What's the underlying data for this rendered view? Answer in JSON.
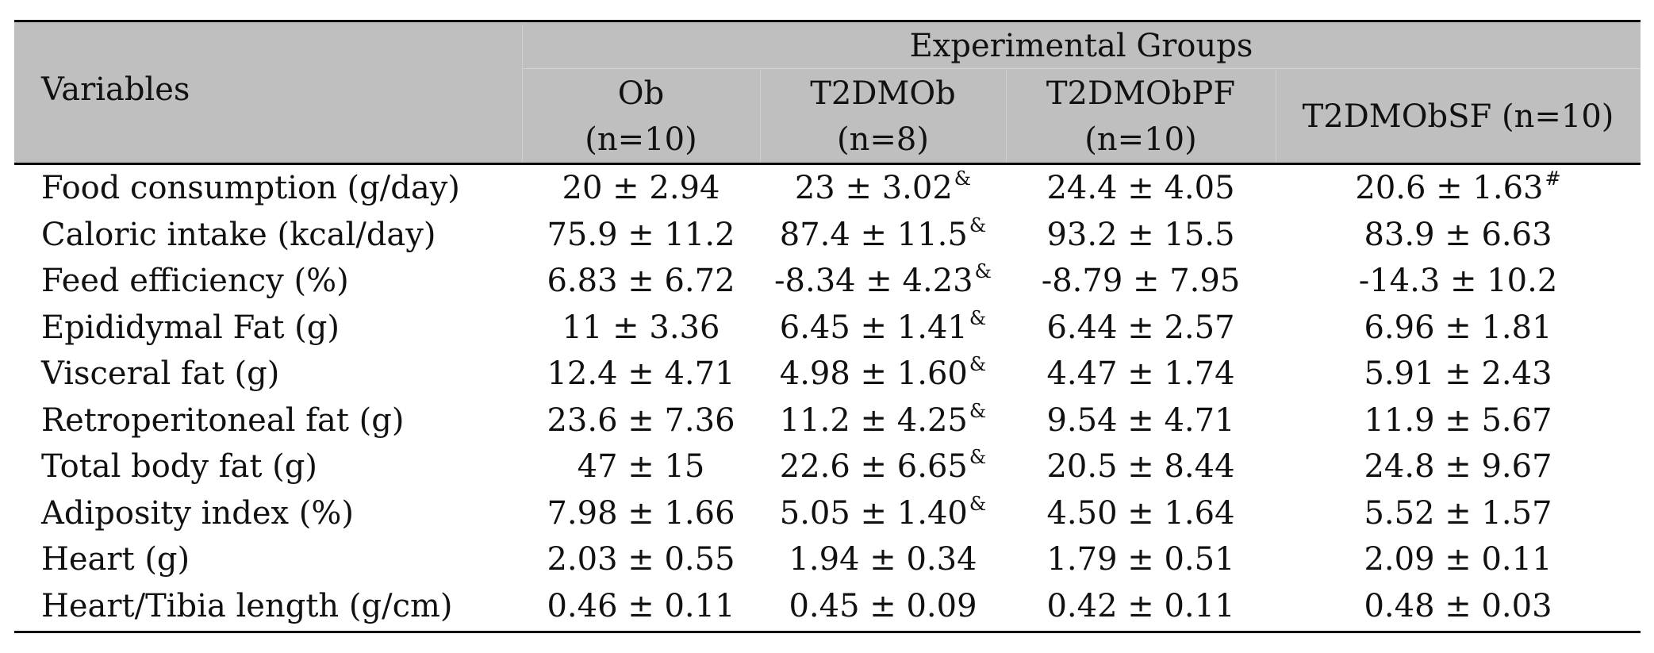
{
  "header": {
    "variables_label": "Variables",
    "group_label": "Experimental Groups",
    "columns": [
      {
        "name": "Ob",
        "n": "(n=10)"
      },
      {
        "name": "T2DMOb",
        "n": "(n=8)"
      },
      {
        "name": "T2DMObPF",
        "n": "(n=10)"
      },
      {
        "name": "T2DMObSF (n=10)",
        "n": ""
      }
    ]
  },
  "rows": [
    {
      "label": "Food consumption (g/day)",
      "values": [
        {
          "v": "20 ± 2.94",
          "m": ""
        },
        {
          "v": "23 ± 3.02",
          "m": "&"
        },
        {
          "v": "24.4 ± 4.05",
          "m": ""
        },
        {
          "v": "20.6 ± 1.63",
          "m": "#"
        }
      ]
    },
    {
      "label": "Caloric intake (kcal/day)",
      "values": [
        {
          "v": "75.9 ± 11.2",
          "m": ""
        },
        {
          "v": "87.4 ± 11.5",
          "m": "&"
        },
        {
          "v": "93.2 ± 15.5",
          "m": ""
        },
        {
          "v": "83.9 ± 6.63",
          "m": ""
        }
      ]
    },
    {
      "label": "Feed efficiency (%)",
      "values": [
        {
          "v": "6.83 ± 6.72",
          "m": ""
        },
        {
          "v": "-8.34 ± 4.23",
          "m": "&"
        },
        {
          "v": "-8.79 ± 7.95",
          "m": ""
        },
        {
          "v": "-14.3 ± 10.2",
          "m": ""
        }
      ]
    },
    {
      "label": "Epididymal Fat (g)",
      "values": [
        {
          "v": "11 ± 3.36",
          "m": ""
        },
        {
          "v": "6.45 ± 1.41",
          "m": "&"
        },
        {
          "v": "6.44 ± 2.57",
          "m": ""
        },
        {
          "v": "6.96 ± 1.81",
          "m": ""
        }
      ]
    },
    {
      "label": "Visceral fat (g)",
      "values": [
        {
          "v": "12.4 ± 4.71",
          "m": ""
        },
        {
          "v": "4.98 ± 1.60",
          "m": "&"
        },
        {
          "v": "4.47 ± 1.74",
          "m": ""
        },
        {
          "v": "5.91 ± 2.43",
          "m": ""
        }
      ]
    },
    {
      "label": "Retroperitoneal fat (g)",
      "values": [
        {
          "v": "23.6 ± 7.36",
          "m": ""
        },
        {
          "v": "11.2 ± 4.25",
          "m": "&"
        },
        {
          "v": "9.54 ± 4.71",
          "m": ""
        },
        {
          "v": "11.9 ± 5.67",
          "m": ""
        }
      ]
    },
    {
      "label": "Total body fat (g)",
      "values": [
        {
          "v": "47 ± 15",
          "m": ""
        },
        {
          "v": "22.6 ± 6.65",
          "m": "&"
        },
        {
          "v": "20.5 ± 8.44",
          "m": ""
        },
        {
          "v": "24.8 ± 9.67",
          "m": ""
        }
      ]
    },
    {
      "label": "Adiposity index (%)",
      "values": [
        {
          "v": "7.98 ± 1.66",
          "m": ""
        },
        {
          "v": "5.05 ± 1.40",
          "m": "&"
        },
        {
          "v": "4.50 ± 1.64",
          "m": ""
        },
        {
          "v": "5.52 ± 1.57",
          "m": ""
        }
      ]
    },
    {
      "label": "Heart (g)",
      "values": [
        {
          "v": "2.03 ± 0.55",
          "m": ""
        },
        {
          "v": "1.94 ± 0.34",
          "m": ""
        },
        {
          "v": "1.79 ± 0.51",
          "m": ""
        },
        {
          "v": "2.09 ± 0.11",
          "m": ""
        }
      ]
    },
    {
      "label": "Heart/Tibia length (g/cm)",
      "values": [
        {
          "v": "0.46 ± 0.11",
          "m": ""
        },
        {
          "v": "0.45 ± 0.09",
          "m": ""
        },
        {
          "v": "0.42 ± 0.11",
          "m": ""
        },
        {
          "v": "0.48 ± 0.03",
          "m": ""
        }
      ]
    }
  ]
}
